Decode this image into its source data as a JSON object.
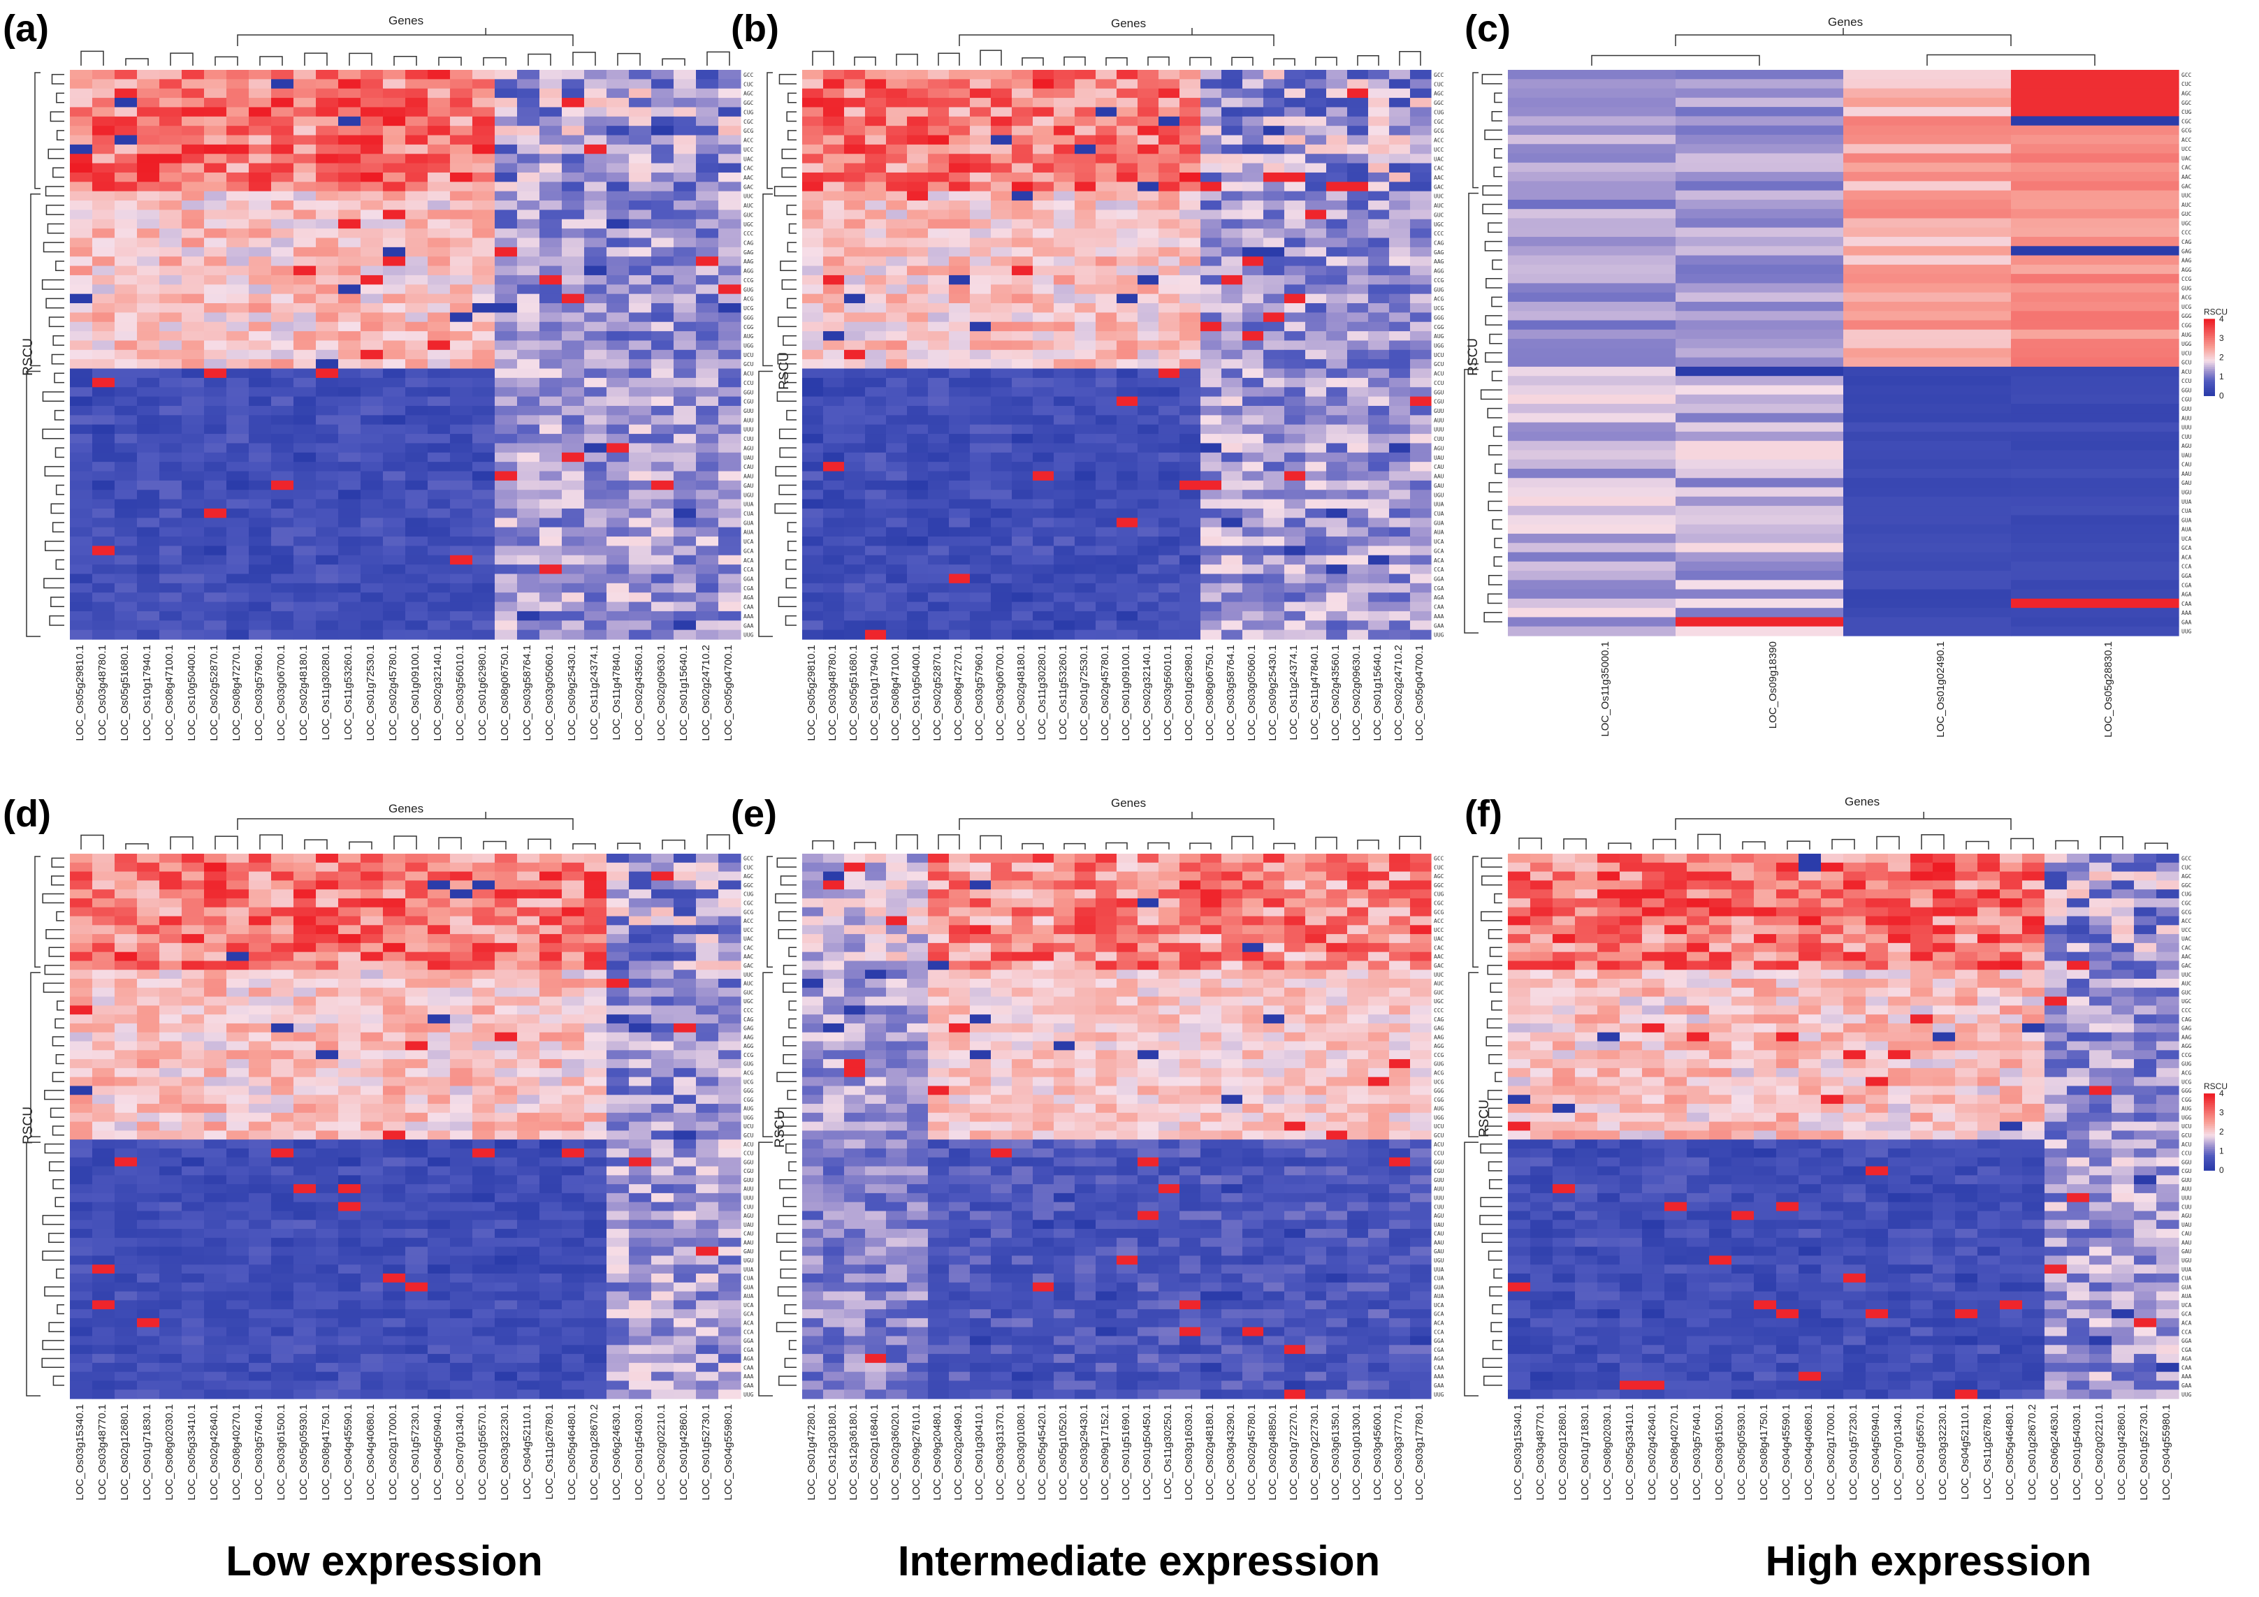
{
  "figure": {
    "captions": [
      "Low expression",
      "Intermediate expression",
      "High expression"
    ]
  },
  "chart_data": [
    {
      "type": "heatmap",
      "panel_label": "(a)",
      "title": "Genes",
      "ylabel": "RSCU",
      "columns": [
        "LOC_Os05g29810.1",
        "LOC_Os03g48780.1",
        "LOC_Os05g51680.1",
        "LOC_Os10g17940.1",
        "LOC_Os08g47100.1",
        "LOC_Os10g50400.1",
        "LOC_Os02g52870.1",
        "LOC_Os08g47270.1",
        "LOC_Os03g57960.1",
        "LOC_Os03g06700.1",
        "LOC_Os02g48180.1",
        "LOC_Os11g30280.1",
        "LOC_Os11g53260.1",
        "LOC_Os01g72530.1",
        "LOC_Os02g45780.1",
        "LOC_Os01g09100.1",
        "LOC_Os02g32140.1",
        "LOC_Os03g56010.1",
        "LOC_Os01g62980.1",
        "LOC_Os08g06750.1",
        "LOC_Os03g58764.1",
        "LOC_Os03g05060.1",
        "LOC_Os09g25430.1",
        "LOC_Os11g24374.1",
        "LOC_Os11g47840.1",
        "LOC_Os02g43560.1",
        "LOC_Os02g09630.1",
        "LOC_Os01g15640.1",
        "LOC_Os02g24710.2",
        "LOC_Os05g04700.1"
      ],
      "n_rows": 61,
      "legend": {
        "title": "RSCU",
        "ticks": [
          0,
          1,
          2,
          3,
          4
        ]
      },
      "show_legend": false
    },
    {
      "type": "heatmap",
      "panel_label": "(b)",
      "title": "Genes",
      "ylabel": "RSCU",
      "columns": [
        "LOC_Os05g29810.1",
        "LOC_Os03g48780.1",
        "LOC_Os05g51680.1",
        "LOC_Os10g17940.1",
        "LOC_Os08g47100.1",
        "LOC_Os10g50400.1",
        "LOC_Os02g52870.1",
        "LOC_Os08g47270.1",
        "LOC_Os03g57960.1",
        "LOC_Os03g06700.1",
        "LOC_Os02g48180.1",
        "LOC_Os11g30280.1",
        "LOC_Os11g53260.1",
        "LOC_Os01g72530.1",
        "LOC_Os02g45780.1",
        "LOC_Os01g09100.1",
        "LOC_Os02g32140.1",
        "LOC_Os03g56010.1",
        "LOC_Os01g62980.1",
        "LOC_Os08g06750.1",
        "LOC_Os03g58764.1",
        "LOC_Os03g05060.1",
        "LOC_Os09g25430.1",
        "LOC_Os11g24374.1",
        "LOC_Os11g47840.1",
        "LOC_Os02g43560.1",
        "LOC_Os02g09630.1",
        "LOC_Os01g15640.1",
        "LOC_Os02g24710.2",
        "LOC_Os05g04700.1"
      ],
      "n_rows": 61,
      "legend": {
        "title": "RSCU",
        "ticks": [
          0,
          1,
          2,
          3,
          4
        ]
      },
      "show_legend": false
    },
    {
      "type": "heatmap",
      "panel_label": "(c)",
      "title": "Genes",
      "ylabel": "RSCU",
      "columns": [
        "LOC_Os11g35000.1",
        "LOC_Os09g18390",
        "LOC_Os01g02490.1",
        "LOC_Os05g28830.1"
      ],
      "n_rows": 61,
      "legend": {
        "title": "RSCU",
        "ticks": [
          0,
          1,
          2,
          3,
          4
        ]
      },
      "show_legend": true
    },
    {
      "type": "heatmap",
      "panel_label": "(d)",
      "title": "Genes",
      "ylabel": "RSCU",
      "columns": [
        "LOC_Os03g15340.1",
        "LOC_Os03g48770.1",
        "LOC_Os02g12680.1",
        "LOC_Os01g71830.1",
        "LOC_Os08g02030.1",
        "LOC_Os05g33410.1",
        "LOC_Os02g42640.1",
        "LOC_Os08g40270.1",
        "LOC_Os03g57640.1",
        "LOC_Os03g61500.1",
        "LOC_Os05g05930.1",
        "LOC_Os08g41750.1",
        "LOC_Os04g45590.1",
        "LOC_Os04g40680.1",
        "LOC_Os02g17000.1",
        "LOC_Os01g57230.1",
        "LOC_Os04g50940.1",
        "LOC_Os07g01340.1",
        "LOC_Os01g56570.1",
        "LOC_Os03g32230.1",
        "LOC_Os04g52110.1",
        "LOC_Os11g26780.1",
        "LOC_Os05g46480.1",
        "LOC_Os01g28670.2",
        "LOC_Os06g24630.1",
        "LOC_Os01g54030.1",
        "LOC_Os02g02210.1",
        "LOC_Os01g42860.1",
        "LOC_Os01g52730.1",
        "LOC_Os04g55980.1"
      ],
      "n_rows": 61,
      "legend": {
        "title": "RSCU",
        "ticks": [
          0,
          1,
          2,
          3,
          4
        ]
      },
      "show_legend": false
    },
    {
      "type": "heatmap",
      "panel_label": "(e)",
      "title": "Genes",
      "ylabel": "RSCU",
      "columns": [
        "LOC_Os01g47280.1",
        "LOC_Os12g30180.1",
        "LOC_Os12g36180.1",
        "LOC_Os02g16840.1",
        "LOC_Os02g36020.1",
        "LOC_Os09g27610.1",
        "LOC_Os09g20480.1",
        "LOC_Os02g20490.1",
        "LOC_Os01g30410.1",
        "LOC_Os03g31370.1",
        "LOC_Os03g01080.1",
        "LOC_Os05g45420.1",
        "LOC_Os05g10520.1",
        "LOC_Os03g29430.1",
        "LOC_Os09g17152.1",
        "LOC_Os01g51690.1",
        "LOC_Os01g50450.1",
        "LOC_Os11g30250.1",
        "LOC_Os03g16030.1",
        "LOC_Os02g48180.1",
        "LOC_Os03g43290.1",
        "LOC_Os02g45780.1",
        "LOC_Os02g48850.1",
        "LOC_Os01g72270.1",
        "LOC_Os07g22730.1",
        "LOC_Os03g61350.1",
        "LOC_Os01g01300.1",
        "LOC_Os03g45600.1",
        "LOC_Os03g37770.1",
        "LOC_Os03g17780.1"
      ],
      "n_rows": 61,
      "legend": {
        "title": "RSCU",
        "ticks": [
          0,
          1,
          2,
          3,
          4
        ]
      },
      "show_legend": false
    },
    {
      "type": "heatmap",
      "panel_label": "(f)",
      "title": "Genes",
      "ylabel": "RSCU",
      "columns": [
        "LOC_Os03g15340.1",
        "LOC_Os03g48770.1",
        "LOC_Os02g12680.1",
        "LOC_Os01g71830.1",
        "LOC_Os08g02030.1",
        "LOC_Os05g33410.1",
        "LOC_Os02g42640.1",
        "LOC_Os08g40270.1",
        "LOC_Os03g57640.1",
        "LOC_Os03g61500.1",
        "LOC_Os05g05930.1",
        "LOC_Os08g41750.1",
        "LOC_Os04g45590.1",
        "LOC_Os04g40680.1",
        "LOC_Os02g17000.1",
        "LOC_Os01g57230.1",
        "LOC_Os04g50940.1",
        "LOC_Os07g01340.1",
        "LOC_Os01g56570.1",
        "LOC_Os03g32230.1",
        "LOC_Os04g52110.1",
        "LOC_Os11g26780.1",
        "LOC_Os05g46480.1",
        "LOC_Os01g28670.2",
        "LOC_Os06g24630.1",
        "LOC_Os01g54030.1",
        "LOC_Os02g02210.1",
        "LOC_Os01g42860.1",
        "LOC_Os01g52730.1",
        "LOC_Os04g55980.1"
      ],
      "n_rows": 61,
      "legend": {
        "title": "RSCU",
        "ticks": [
          0,
          1,
          2,
          3,
          4
        ]
      },
      "show_legend": true
    }
  ]
}
